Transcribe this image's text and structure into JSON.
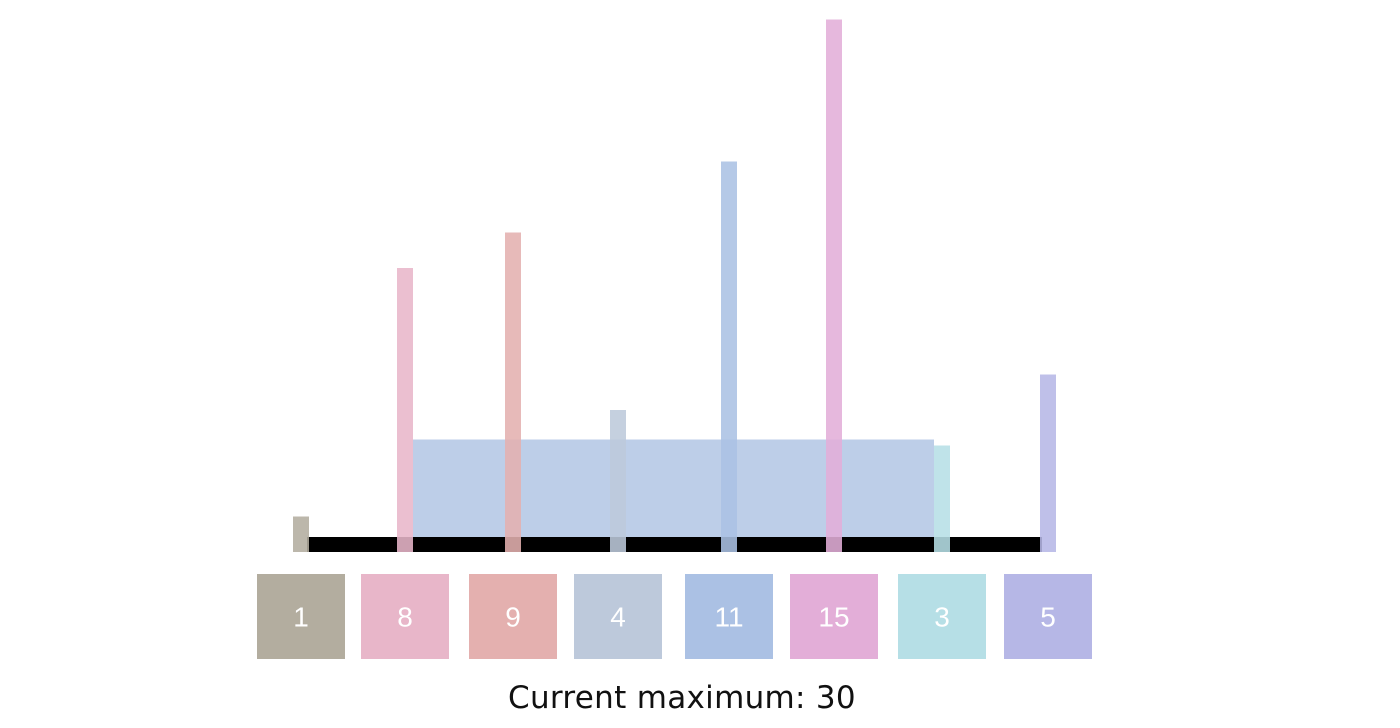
{
  "heights": [
    1,
    8,
    9,
    4,
    11,
    15,
    3,
    5
  ],
  "colors": [
    "#b3ad9f",
    "#e8b6c9",
    "#e4b0af",
    "#bdc9db",
    "#abc1e4",
    "#e3aed8",
    "#b6dfe6",
    "#b6b7e6"
  ],
  "water": {
    "left_index": 1,
    "right_index": 6,
    "level": 3,
    "color": "#a7bde0"
  },
  "axis_color": "#000000",
  "status_text": "Current maximum: 30"
}
